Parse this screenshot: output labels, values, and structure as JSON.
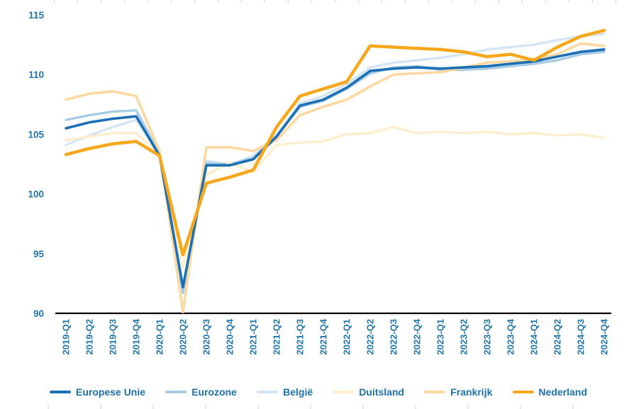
{
  "chart_data": {
    "type": "line",
    "title": "",
    "xlabel": "",
    "ylabel": "",
    "ylim": [
      90,
      115
    ],
    "yticks": [
      90,
      95,
      100,
      105,
      110,
      115
    ],
    "grid": false,
    "legend_position": "bottom",
    "axis_color": "#000000",
    "label_color": "#2277ad",
    "edge_tick_color": "#d9d9d9",
    "categories": [
      "2019-Q1",
      "2019-Q2",
      "2019-Q3",
      "2019-Q4",
      "2020-Q1",
      "2020-Q2",
      "2020-Q3",
      "2020-Q4",
      "2021-Q1",
      "2021-Q2",
      "2021-Q3",
      "2021-Q4",
      "2022-Q1",
      "2022-Q2",
      "2022-Q3",
      "2022-Q4",
      "2023-Q1",
      "2023-Q2",
      "2023-Q3",
      "2023-Q4",
      "2024-Q1",
      "2024-Q2",
      "2024-Q3",
      "2024-Q4"
    ],
    "series": [
      {
        "name": "Europese Unie",
        "color": "#1b6fb5",
        "line_width": 3.6,
        "values": [
          105.5,
          106.0,
          106.3,
          106.5,
          103.2,
          92.2,
          102.4,
          102.4,
          102.9,
          104.8,
          107.4,
          107.9,
          108.9,
          110.3,
          110.5,
          110.6,
          110.5,
          110.6,
          110.7,
          110.9,
          111.1,
          111.5,
          111.9,
          112.1
        ]
      },
      {
        "name": "Eurozone",
        "color": "#a8cbe6",
        "line_width": 3.4,
        "values": [
          106.2,
          106.6,
          106.9,
          107.0,
          103.4,
          91.7,
          102.6,
          102.5,
          103.0,
          104.9,
          107.3,
          107.8,
          108.8,
          110.1,
          110.6,
          110.7,
          110.4,
          110.4,
          110.5,
          110.7,
          110.9,
          111.2,
          111.7,
          111.9
        ]
      },
      {
        "name": "België",
        "color": "#d4e6f5",
        "line_width": 3.4,
        "values": [
          104.1,
          104.9,
          105.6,
          106.2,
          103.4,
          91.9,
          102.8,
          102.4,
          103.2,
          104.9,
          107.6,
          108.2,
          109.2,
          110.6,
          111.0,
          111.2,
          111.4,
          111.7,
          112.1,
          112.3,
          112.5,
          112.9,
          113.2,
          113.4
        ]
      },
      {
        "name": "Duitsland",
        "color": "#fdeecd",
        "line_width": 3.4,
        "values": [
          104.5,
          104.8,
          105.1,
          105.1,
          103.3,
          93.8,
          101.6,
          102.6,
          101.8,
          104.1,
          104.3,
          104.4,
          105.0,
          105.1,
          105.6,
          105.1,
          105.2,
          105.1,
          105.2,
          105.0,
          105.1,
          104.9,
          105.0,
          104.7
        ]
      },
      {
        "name": "Frankrijk",
        "color": "#fbd9a1",
        "line_width": 3.6,
        "values": [
          107.9,
          108.4,
          108.6,
          108.2,
          103.6,
          90.1,
          103.9,
          103.9,
          103.6,
          104.5,
          106.6,
          107.3,
          107.9,
          109.0,
          110.0,
          110.1,
          110.2,
          110.6,
          111.0,
          111.1,
          111.3,
          111.7,
          112.6,
          112.4
        ]
      },
      {
        "name": "Nederland",
        "color": "#f6a71b",
        "line_width": 4.5,
        "values": [
          103.3,
          103.8,
          104.2,
          104.4,
          103.2,
          94.9,
          100.9,
          101.4,
          102.0,
          105.6,
          108.2,
          108.8,
          109.4,
          112.4,
          112.3,
          112.2,
          112.1,
          111.9,
          111.5,
          111.7,
          111.2,
          112.3,
          113.2,
          113.7
        ]
      }
    ]
  }
}
